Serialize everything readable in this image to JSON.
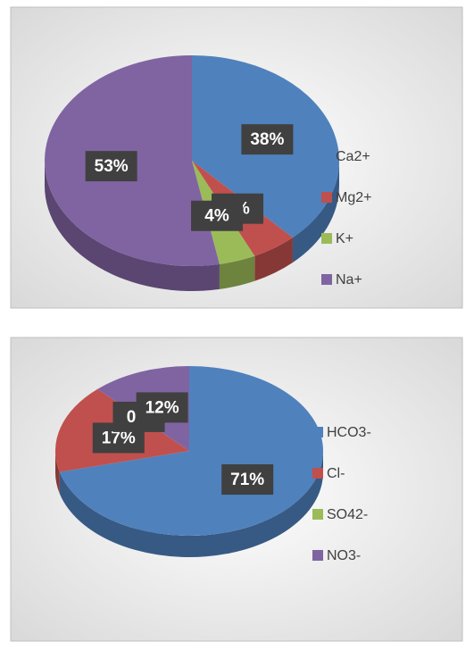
{
  "chart_data": [
    {
      "type": "pie",
      "categories": [
        "Ca2+",
        "Mg2+",
        "K+",
        "Na+"
      ],
      "values": [
        38,
        5,
        4,
        53
      ],
      "value_labels": [
        "38%",
        "5%",
        "4%",
        "53%"
      ],
      "colors": [
        "#4f81bd",
        "#c0504d",
        "#9bbb59",
        "#8064a2"
      ],
      "legend": "right"
    },
    {
      "type": "pie",
      "categories": [
        "HCO3-",
        "Cl-",
        "SO42-",
        "NO3-"
      ],
      "values": [
        71,
        17,
        0,
        12
      ],
      "value_labels": [
        "71%",
        "17%",
        "0%",
        "12%"
      ],
      "colors": [
        "#4f81bd",
        "#c0504d",
        "#9bbb59",
        "#8064a2"
      ],
      "legend": "right"
    }
  ]
}
